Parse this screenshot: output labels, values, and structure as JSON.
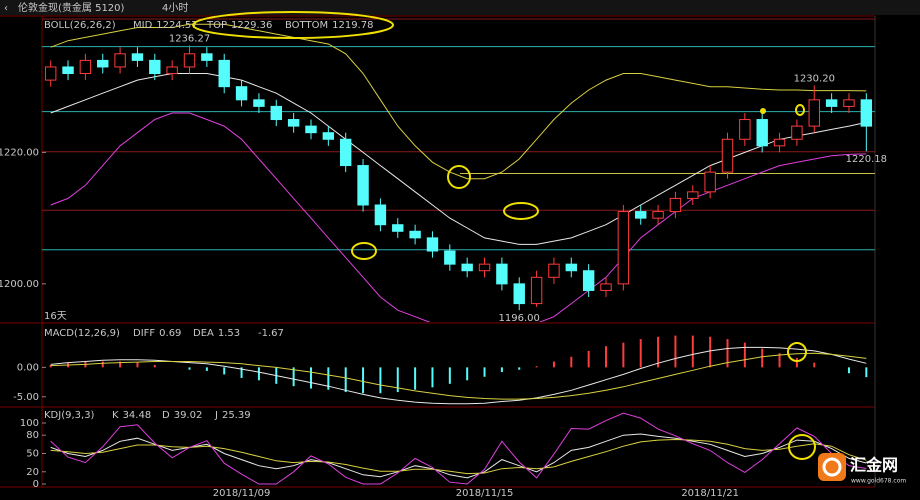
{
  "header": {
    "instrument": "伦敦金现(贵金属 5120)",
    "period": "4小时"
  },
  "watermark": {
    "brand": "汇金网",
    "url": "www.gold678.com"
  },
  "chart_data": [
    {
      "type": "candlestick",
      "name": "BOLL(26,26,2)",
      "note": "16天",
      "categories": [
        null,
        null,
        null,
        null,
        null,
        null,
        null,
        null,
        null,
        null,
        null,
        "2018/11/09",
        null,
        null,
        null,
        null,
        null,
        null,
        null,
        null,
        null,
        null,
        null,
        null,
        null,
        "2018/11/15",
        null,
        null,
        null,
        null,
        null,
        null,
        null,
        null,
        null,
        null,
        null,
        null,
        "2018/11/21",
        null,
        null,
        null,
        null,
        null,
        null,
        null,
        null,
        null
      ],
      "open": [
        1231,
        1233,
        1232,
        1234,
        1233,
        1235,
        1234,
        1232,
        1233,
        1235,
        1234,
        1230,
        1228,
        1227,
        1225,
        1224,
        1223,
        1222,
        1218,
        1212,
        1209,
        1208,
        1207,
        1205,
        1203,
        1202,
        1203,
        1200,
        1197,
        1201,
        1203,
        1202,
        1199,
        1200,
        1211,
        1210,
        1211,
        1213,
        1214,
        1217,
        1222,
        1225,
        1221,
        1222,
        1224,
        1228,
        1227,
        1228
      ],
      "high": [
        1234,
        1234,
        1235,
        1235,
        1236,
        1236,
        1235,
        1234,
        1236.27,
        1236,
        1235,
        1231,
        1229,
        1228,
        1226,
        1225,
        1224,
        1223,
        1219,
        1213,
        1210,
        1209,
        1208,
        1206,
        1204,
        1204,
        1204,
        1201,
        1202,
        1204,
        1204,
        1203,
        1201,
        1212,
        1212,
        1212,
        1214,
        1215,
        1218,
        1223,
        1226,
        1226,
        1223,
        1225,
        1230.2,
        1229,
        1229,
        1229
      ],
      "low": [
        1230,
        1231,
        1231,
        1232,
        1232,
        1233,
        1231,
        1231,
        1232,
        1233,
        1229,
        1227,
        1226,
        1224,
        1223,
        1222,
        1221,
        1217,
        1211,
        1208,
        1207,
        1206,
        1204,
        1202,
        1201,
        1201,
        1199,
        1196,
        1196.5,
        1200,
        1201,
        1198,
        1198,
        1199,
        1209,
        1209,
        1210,
        1212,
        1213,
        1216,
        1221,
        1220,
        1220,
        1221,
        1223,
        1226,
        1226,
        1220.18
      ],
      "close": [
        1233,
        1232,
        1234,
        1233,
        1235,
        1234,
        1232,
        1233,
        1235,
        1234,
        1230,
        1228,
        1227,
        1225,
        1224,
        1223,
        1222,
        1218,
        1212,
        1209,
        1208,
        1207,
        1205,
        1203,
        1202,
        1203,
        1200,
        1197,
        1201,
        1203,
        1202,
        1199,
        1200,
        1211,
        1210,
        1211,
        1213,
        1214,
        1217,
        1222,
        1225,
        1221,
        1222,
        1224,
        1228,
        1227,
        1228,
        1224
      ],
      "high_labels": [
        null,
        null,
        null,
        null,
        null,
        null,
        null,
        null,
        "1236.27",
        null,
        null,
        null,
        null,
        null,
        null,
        null,
        null,
        null,
        null,
        null,
        null,
        null,
        null,
        null,
        null,
        null,
        null,
        null,
        null,
        null,
        null,
        null,
        null,
        null,
        null,
        null,
        null,
        null,
        null,
        null,
        null,
        null,
        null,
        null,
        "1230.20",
        null,
        null,
        null
      ],
      "low_labels": [
        null,
        null,
        null,
        null,
        null,
        null,
        null,
        null,
        null,
        null,
        null,
        null,
        null,
        null,
        null,
        null,
        null,
        null,
        null,
        null,
        null,
        null,
        null,
        null,
        null,
        null,
        null,
        "1196.00",
        null,
        null,
        null,
        null,
        null,
        null,
        null,
        null,
        null,
        null,
        null,
        null,
        null,
        null,
        null,
        null,
        null,
        null,
        null,
        "1220.18"
      ],
      "up_color": "#ff3b3b",
      "down_color": "#54fcfc",
      "series": [
        {
          "name": "MID",
          "color": "#e8e8e8",
          "values": [
            1226,
            1227,
            1228,
            1229,
            1230,
            1231,
            1231.5,
            1232,
            1232,
            1232,
            1231.5,
            1231,
            1230,
            1229,
            1227.5,
            1226,
            1224,
            1222,
            1220,
            1218,
            1216,
            1214,
            1212,
            1210,
            1208.5,
            1207,
            1206.5,
            1206,
            1206,
            1206.5,
            1207,
            1208,
            1209,
            1210.5,
            1212,
            1213.5,
            1215,
            1216.5,
            1218,
            1219,
            1220,
            1221,
            1222,
            1222.5,
            1223,
            1223.5,
            1224,
            1224.57
          ]
        },
        {
          "name": "TOP",
          "color": "#d8d040",
          "values": [
            1236,
            1237,
            1237.5,
            1238,
            1238.5,
            1239,
            1239,
            1239,
            1239.5,
            1239.5,
            1239.5,
            1239,
            1238.5,
            1238,
            1237.5,
            1237,
            1236.5,
            1235,
            1232,
            1228,
            1224,
            1221,
            1218.5,
            1217,
            1216,
            1216,
            1217,
            1219,
            1222,
            1225,
            1227.5,
            1229.5,
            1231,
            1232,
            1232,
            1231.5,
            1231,
            1230.5,
            1230,
            1230,
            1229.8,
            1229.6,
            1229.5,
            1229.5,
            1229.4,
            1229.4,
            1229.4,
            1229.36
          ]
        },
        {
          "name": "BOTTOM",
          "color": "#e040e0",
          "values": [
            1212,
            1213,
            1215,
            1218,
            1221,
            1223,
            1225,
            1226,
            1226,
            1225,
            1224,
            1222,
            1219,
            1216,
            1213,
            1210,
            1207,
            1204,
            1201,
            1198,
            1196,
            1195,
            1194,
            1193.5,
            1193,
            1193,
            1193,
            1193.5,
            1194,
            1195,
            1197,
            1199,
            1201,
            1204,
            1207,
            1209,
            1211,
            1213,
            1214,
            1215,
            1216,
            1217,
            1218,
            1218.5,
            1219,
            1219.5,
            1219.7,
            1219.78
          ]
        }
      ],
      "levels": [
        {
          "value": 1240.3,
          "color": "#8b1a1a"
        },
        {
          "value": 1236.1,
          "color": "#2ab0b0"
        },
        {
          "value": 1226.2,
          "color": "#2ab0b0"
        },
        {
          "value": 1220.1,
          "color": "#8b1a1a"
        },
        {
          "value": 1216.8,
          "color": "#c8c040"
        },
        {
          "value": 1211.2,
          "color": "#8b1a1a"
        },
        {
          "value": 1205.2,
          "color": "#2ab0b0"
        }
      ],
      "ylim": [
        1194.2,
        1240.6
      ],
      "yticks": [
        {
          "value": 1220,
          "label": "1220.00"
        },
        {
          "value": 1200,
          "label": "1200.00"
        }
      ]
    },
    {
      "type": "macd",
      "name": "MACD(12,26,9)",
      "series": [
        {
          "name": "DIFF",
          "color": "#e8e8e8",
          "values": [
            0.5,
            0.8,
            1.0,
            1.2,
            1.3,
            1.3,
            1.2,
            1.0,
            0.8,
            0.6,
            0.2,
            -0.3,
            -0.8,
            -1.4,
            -2.0,
            -2.6,
            -3.2,
            -3.9,
            -4.6,
            -5.2,
            -5.6,
            -5.9,
            -6.1,
            -6.2,
            -6.2,
            -6.1,
            -5.8,
            -5.6,
            -5.2,
            -4.6,
            -3.9,
            -3.0,
            -2.1,
            -1.2,
            -0.2,
            0.7,
            1.5,
            2.2,
            2.8,
            3.2,
            3.4,
            3.4,
            3.3,
            3.1,
            2.8,
            2.2,
            1.4,
            0.69
          ]
        },
        {
          "name": "DEA",
          "color": "#d8d040",
          "values": [
            0.3,
            0.4,
            0.5,
            0.7,
            0.8,
            0.9,
            1.0,
            1.0,
            1.0,
            0.9,
            0.8,
            0.6,
            0.3,
            0.0,
            -0.4,
            -0.8,
            -1.3,
            -1.8,
            -2.4,
            -3.0,
            -3.5,
            -4.0,
            -4.4,
            -4.8,
            -5.1,
            -5.3,
            -5.4,
            -5.4,
            -5.3,
            -5.1,
            -4.8,
            -4.4,
            -3.9,
            -3.3,
            -2.6,
            -1.9,
            -1.2,
            -0.5,
            0.2,
            0.8,
            1.3,
            1.8,
            2.1,
            2.3,
            2.4,
            2.2,
            1.9,
            1.53
          ]
        }
      ],
      "histogram": {
        "up_color": "#ff3b3b",
        "down_color": "#54fcfc",
        "values": [
          0.4,
          0.8,
          1.0,
          1.0,
          1.0,
          0.8,
          0.4,
          0,
          -0.4,
          -0.6,
          -1.2,
          -1.8,
          -2.2,
          -2.8,
          -3.2,
          -3.6,
          -3.8,
          -4.2,
          -4.4,
          -4.4,
          -4.2,
          -3.8,
          -3.4,
          -2.8,
          -2.2,
          -1.6,
          -0.8,
          -0.4,
          0.2,
          1.0,
          1.8,
          2.8,
          3.6,
          4.2,
          4.8,
          5.2,
          5.4,
          5.4,
          5.2,
          4.8,
          4.2,
          3.2,
          2.4,
          1.6,
          0.8,
          0,
          -1.0,
          -1.67
        ]
      },
      "ylim": [
        -6.4,
        7.2
      ],
      "yticks": [
        {
          "value": 0,
          "label": "0.00"
        },
        {
          "value": -5,
          "label": "-5.00"
        }
      ]
    },
    {
      "type": "kdj",
      "name": "KDJ(9,3,3)",
      "series": [
        {
          "name": "K",
          "color": "#e8e8e8",
          "values": [
            60,
            50,
            45,
            55,
            70,
            75,
            65,
            55,
            60,
            65,
            50,
            40,
            30,
            25,
            30,
            40,
            35,
            25,
            15,
            12,
            20,
            30,
            25,
            15,
            10,
            20,
            40,
            30,
            20,
            35,
            55,
            60,
            70,
            80,
            82,
            78,
            75,
            70,
            65,
            55,
            45,
            50,
            60,
            72,
            70,
            58,
            42,
            34.48
          ]
        },
        {
          "name": "D",
          "color": "#d8d040",
          "values": [
            55,
            53,
            50,
            52,
            58,
            64,
            64,
            61,
            60,
            62,
            58,
            52,
            45,
            38,
            35,
            37,
            36,
            32,
            26,
            21,
            21,
            24,
            24,
            21,
            17,
            18,
            25,
            27,
            25,
            28,
            37,
            45,
            53,
            62,
            69,
            72,
            73,
            72,
            70,
            65,
            58,
            55,
            57,
            62,
            66,
            62,
            48,
            39.02
          ]
        },
        {
          "name": "J",
          "color": "#e040e0",
          "values": [
            70,
            44,
            35,
            61,
            94,
            97,
            67,
            43,
            60,
            71,
            34,
            16,
            0,
            0,
            20,
            46,
            33,
            11,
            0,
            0,
            18,
            42,
            27,
            3,
            0,
            24,
            70,
            36,
            10,
            49,
            91,
            90,
            104,
            116,
            108,
            90,
            79,
            66,
            55,
            35,
            19,
            40,
            66,
            92,
            78,
            50,
            30,
            25.39
          ]
        }
      ],
      "ylim": [
        -3.3,
        121.3
      ],
      "yticks": [
        100,
        80,
        50,
        20,
        0
      ]
    }
  ]
}
